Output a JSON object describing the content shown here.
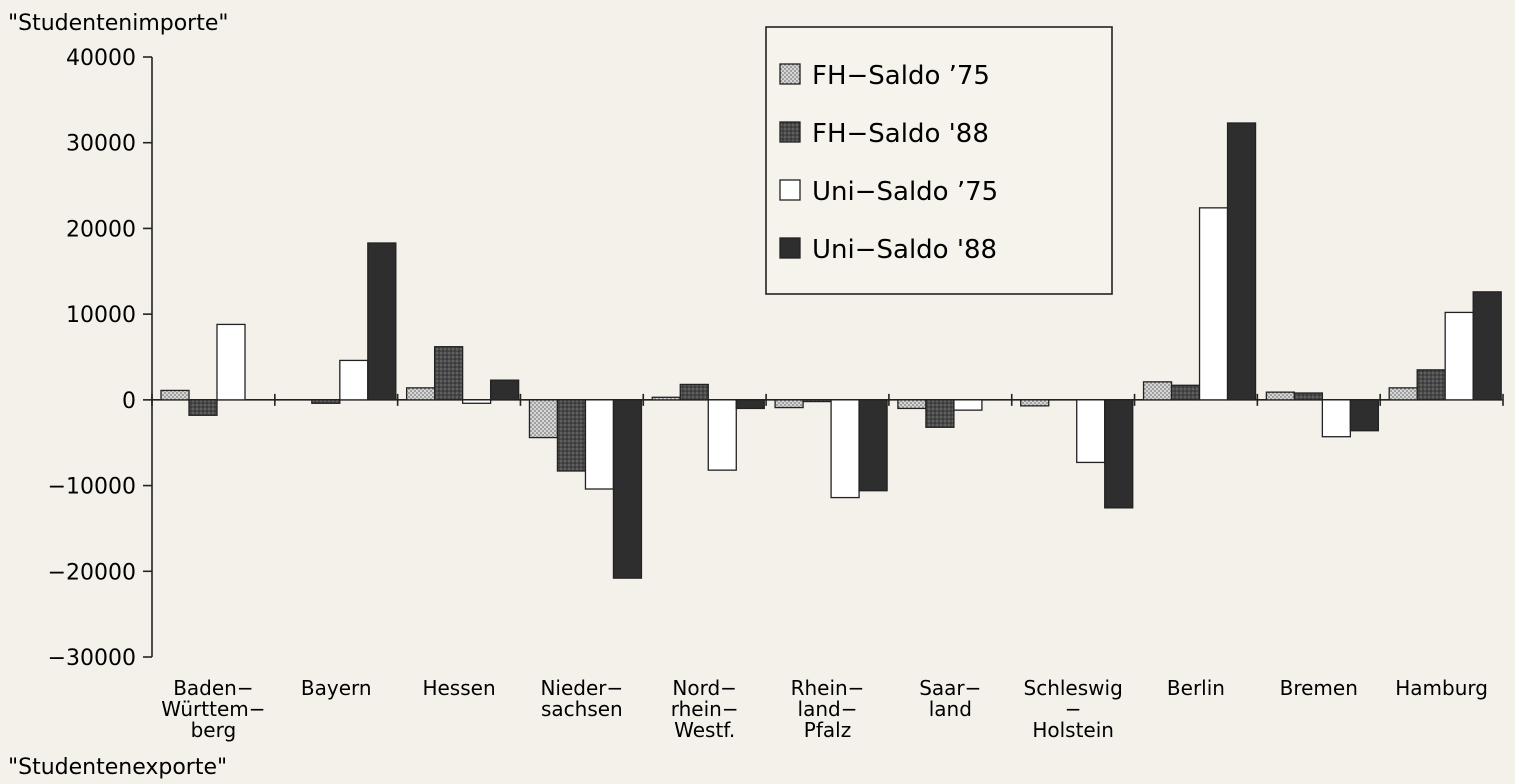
{
  "chart_data": {
    "type": "bar",
    "ylabel_top": "\"Studentenimporte\"",
    "ylabel_bottom": "\"Studentenexporte\"",
    "ylim": [
      -30000,
      40000
    ],
    "yticks": [
      40000,
      30000,
      20000,
      10000,
      0,
      -10000,
      -20000,
      -30000
    ],
    "ytick_labels": [
      "40000",
      "30000",
      "20000",
      "10000",
      "0",
      "−10000",
      "−20000",
      "−30000"
    ],
    "grid": false,
    "legend_position": "top-center",
    "categories": [
      {
        "lines": [
          "Baden−",
          "Württem−",
          "berg"
        ]
      },
      {
        "lines": [
          "Bayern"
        ]
      },
      {
        "lines": [
          "Hessen"
        ]
      },
      {
        "lines": [
          "Nieder−",
          "sachsen"
        ]
      },
      {
        "lines": [
          "Nord−",
          "rhein−",
          "Westf."
        ]
      },
      {
        "lines": [
          "Rhein−",
          "land−",
          "Pfalz"
        ]
      },
      {
        "lines": [
          "Saar−",
          "land"
        ]
      },
      {
        "lines": [
          "Schleswig",
          "−",
          "Holstein"
        ]
      },
      {
        "lines": [
          "Berlin"
        ]
      },
      {
        "lines": [
          "Bremen"
        ]
      },
      {
        "lines": [
          "Hamburg"
        ]
      }
    ],
    "series": [
      {
        "name": "FH−Saldo ’75",
        "fill": "#bdbdbd",
        "values": [
          1100,
          0,
          1400,
          -4400,
          300,
          -900,
          -1000,
          -700,
          2100,
          900,
          1400
        ]
      },
      {
        "name": "FH−Saldo '88",
        "fill": "#5a5a5a",
        "values": [
          -1800,
          -400,
          6200,
          -8300,
          1800,
          -200,
          -3200,
          0,
          1700,
          800,
          3500
        ]
      },
      {
        "name": "Uni−Saldo ’75",
        "fill": "#ffffff",
        "values": [
          8800,
          4600,
          -400,
          -10400,
          -8200,
          -11400,
          -1200,
          -7300,
          22400,
          -4300,
          10200
        ]
      },
      {
        "name": "Uni−Saldo '88",
        "fill": "#2e2e2e",
        "values": [
          0,
          18300,
          2300,
          -20800,
          -1000,
          -10600,
          0,
          -12600,
          32300,
          -3600,
          12600
        ]
      }
    ]
  }
}
